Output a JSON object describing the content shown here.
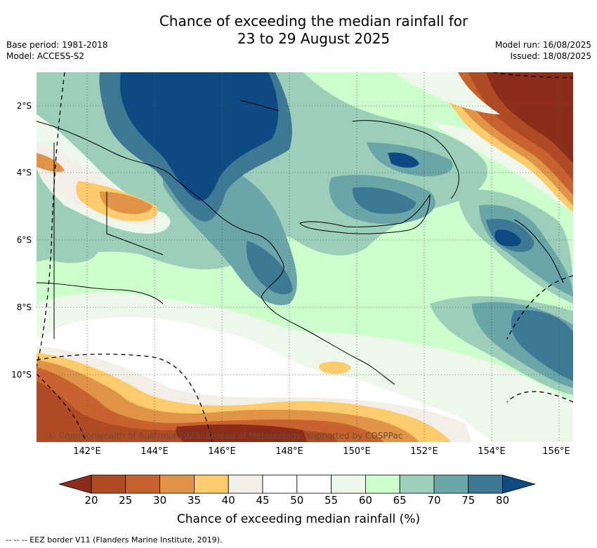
{
  "header": {
    "title_line1": "Chance of exceeding the median rainfall for",
    "title_line2": "23 to 29 August 2025",
    "base_period": "Base period: 1981-2018",
    "model": "Model: ACCESS-S2",
    "model_run": "Model run: 16/08/2025",
    "issued": "Issued: 18/08/2025"
  },
  "map": {
    "copyright": "© Commonwealth of Australia 2025, Bureau of Meteorology, supported by COSPPac",
    "lat_labels": [
      "2°S",
      "4°S",
      "6°S",
      "8°S",
      "10°S"
    ],
    "lon_labels": [
      "142°E",
      "144°E",
      "146°E",
      "148°E",
      "150°E",
      "152°E",
      "154°E",
      "156°E"
    ]
  },
  "legend": {
    "ticks": [
      "20",
      "25",
      "30",
      "35",
      "40",
      "45",
      "50",
      "55",
      "60",
      "65",
      "70",
      "75",
      "80"
    ],
    "label": "Chance of exceeding median rainfall (%)",
    "colors": [
      "#8c2d19",
      "#b04a25",
      "#c8632f",
      "#e09447",
      "#fccb6b",
      "#f2efe8",
      "#ffffff",
      "#ffffff",
      "#edf8ea",
      "#ccffcc",
      "#9ccfb8",
      "#6aa5a8",
      "#3d7895",
      "#0d4a83"
    ]
  },
  "footer": {
    "eez_note": "--  --  -- EEZ border V11 (Flanders Marine Institute, 2019)."
  }
}
